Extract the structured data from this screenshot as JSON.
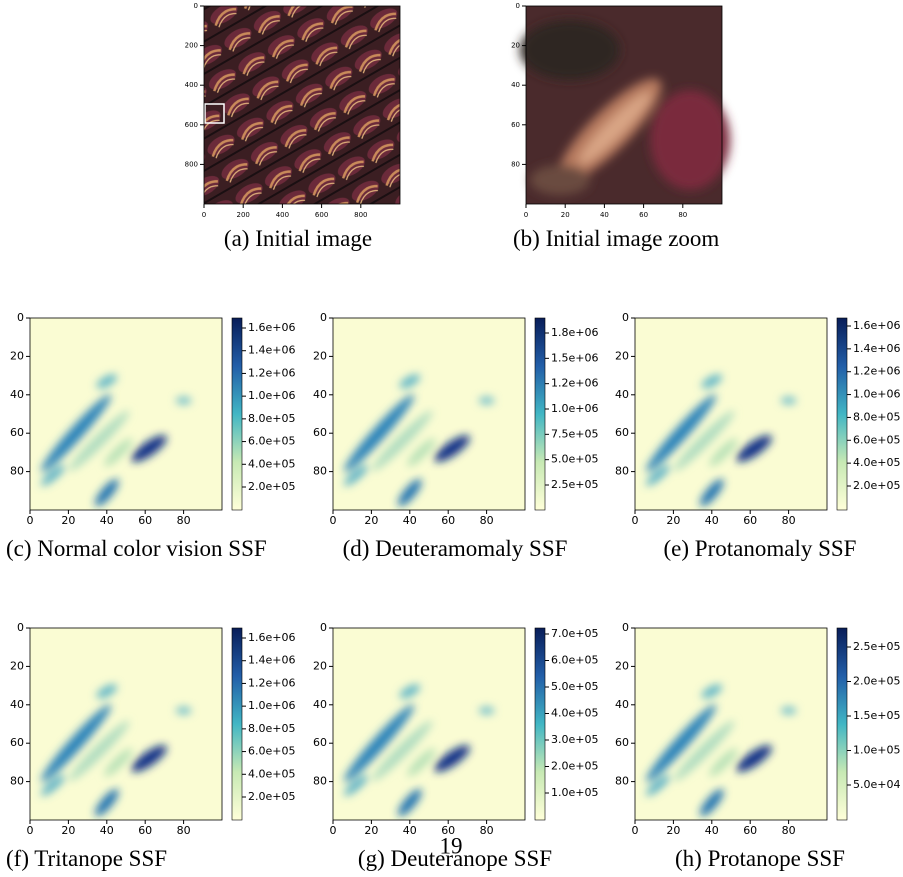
{
  "top_figures": [
    {
      "caption": "(a) Initial image",
      "ticks": [
        0,
        200,
        400,
        600,
        800
      ]
    },
    {
      "caption": "(b) Initial image zoom",
      "ticks": [
        0,
        20,
        40,
        60,
        80
      ]
    }
  ],
  "heatmap_ticks": [
    0,
    20,
    40,
    60,
    80
  ],
  "panels": [
    {
      "caption": "(c) Normal color vision SSF",
      "colorbar_ticks": [
        "2.0e+05",
        "4.0e+05",
        "6.0e+05",
        "8.0e+05",
        "1.0e+06",
        "1.2e+06",
        "1.4e+06",
        "1.6e+06"
      ]
    },
    {
      "caption": "(d) Deuteramomaly SSF",
      "colorbar_ticks": [
        "2.5e+05",
        "5.0e+05",
        "7.5e+05",
        "1.0e+06",
        "1.2e+06",
        "1.5e+06",
        "1.8e+06"
      ]
    },
    {
      "caption": "(e) Protanomaly SSF",
      "colorbar_ticks": [
        "2.0e+05",
        "4.0e+05",
        "6.0e+05",
        "8.0e+05",
        "1.0e+06",
        "1.2e+06",
        "1.4e+06",
        "1.6e+06"
      ]
    },
    {
      "caption": "(f) Tritanope SSF",
      "colorbar_ticks": [
        "2.0e+05",
        "4.0e+05",
        "6.0e+05",
        "8.0e+05",
        "1.0e+06",
        "1.2e+06",
        "1.4e+06",
        "1.6e+06"
      ]
    },
    {
      "caption": "(g) Deuteranope SSF",
      "colorbar_ticks": [
        "1.0e+05",
        "2.0e+05",
        "3.0e+05",
        "4.0e+05",
        "5.0e+05",
        "6.0e+05",
        "7.0e+05"
      ]
    },
    {
      "caption": "(h) Protanope SSF",
      "colorbar_ticks": [
        "5.0e+04",
        "1.0e+05",
        "1.5e+05",
        "2.0e+05",
        "2.5e+05"
      ]
    }
  ],
  "page_number": "19"
}
